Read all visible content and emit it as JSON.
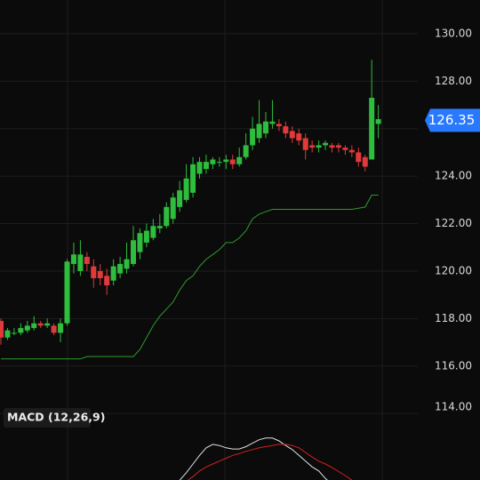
{
  "chart_data": {
    "type": "candlestick",
    "ylim": [
      113.82,
      131.42
    ],
    "yticks": [
      {
        "value": 114,
        "label": "114.00"
      },
      {
        "value": 116,
        "label": "116.00"
      },
      {
        "value": 118,
        "label": "118.00"
      },
      {
        "value": 120,
        "label": "120.00"
      },
      {
        "value": 122,
        "label": "122.00"
      },
      {
        "value": 124,
        "label": "124.00"
      },
      {
        "value": 126,
        "label": "126.00"
      },
      {
        "value": 128,
        "label": "128.00"
      },
      {
        "value": 130,
        "label": "130.00"
      }
    ],
    "grid": true,
    "up_color": "#2ebd3c",
    "down_color": "#e03a3a",
    "open": [
      117.9,
      117.2,
      117.4,
      117.4,
      117.5,
      117.6,
      117.8,
      117.7,
      117.7,
      117.4,
      117.8,
      120.3,
      120.0,
      120.6,
      120.2,
      120.0,
      119.8,
      119.6,
      119.9,
      120.1,
      120.3,
      120.8,
      121.2,
      121.4,
      121.8,
      121.9,
      122.2,
      122.7,
      123.0,
      123.3,
      124.1,
      124.3,
      124.5,
      124.6,
      124.6,
      124.7,
      124.5,
      124.8,
      125.3,
      125.6,
      125.8,
      126.2,
      126.2,
      126.1,
      125.9,
      125.8,
      125.6,
      125.3,
      125.2,
      125.3,
      125.3,
      125.3,
      125.2,
      125.1,
      125.0,
      124.8,
      124.7,
      126.2
    ],
    "high": [
      118.0,
      117.6,
      117.6,
      117.8,
      117.9,
      118.1,
      117.9,
      118.0,
      117.8,
      118.0,
      120.5,
      121.2,
      121.3,
      120.8,
      120.5,
      120.3,
      120.1,
      120.5,
      120.6,
      121.2,
      121.9,
      121.8,
      122.0,
      122.2,
      122.4,
      122.9,
      123.3,
      123.8,
      124.5,
      124.8,
      124.8,
      124.9,
      124.8,
      124.8,
      124.9,
      124.9,
      125.2,
      125.8,
      126.5,
      127.2,
      126.7,
      127.2,
      126.4,
      126.3,
      126.1,
      126.0,
      125.8,
      125.5,
      125.5,
      125.5,
      125.4,
      125.4,
      125.3,
      125.3,
      125.2,
      124.9,
      128.9,
      127.0
    ],
    "low": [
      116.9,
      117.1,
      117.3,
      117.3,
      117.4,
      117.5,
      117.6,
      117.6,
      117.3,
      117.0,
      117.7,
      119.9,
      119.8,
      120.0,
      119.3,
      119.4,
      119.0,
      119.4,
      119.7,
      119.9,
      120.2,
      120.5,
      121.0,
      121.3,
      121.6,
      121.8,
      122.0,
      122.5,
      122.9,
      123.1,
      123.9,
      124.1,
      124.3,
      124.4,
      124.3,
      124.3,
      124.4,
      124.7,
      125.1,
      125.4,
      125.6,
      126.0,
      125.9,
      125.6,
      125.4,
      125.3,
      124.7,
      125.0,
      125.0,
      125.1,
      125.0,
      125.0,
      124.9,
      124.8,
      124.4,
      124.2,
      124.7,
      125.6
    ],
    "close": [
      117.2,
      117.5,
      117.4,
      117.6,
      117.7,
      117.8,
      117.7,
      117.8,
      117.4,
      117.8,
      120.4,
      120.7,
      120.7,
      120.3,
      119.7,
      119.7,
      119.4,
      120.2,
      120.3,
      120.5,
      121.3,
      121.6,
      121.7,
      121.9,
      121.9,
      122.7,
      123.1,
      123.4,
      123.9,
      124.5,
      124.6,
      124.6,
      124.7,
      124.6,
      124.7,
      124.5,
      124.8,
      125.3,
      126.0,
      126.2,
      126.3,
      126.3,
      126.1,
      125.8,
      125.6,
      125.5,
      125.1,
      125.2,
      125.3,
      125.4,
      125.2,
      125.2,
      125.1,
      125.0,
      124.6,
      124.4,
      127.3,
      126.4
    ],
    "overlay": {
      "color": "#2e9b2e",
      "values": [
        116.3,
        116.3,
        116.3,
        116.3,
        116.3,
        116.3,
        116.3,
        116.3,
        116.3,
        116.3,
        116.3,
        116.3,
        116.3,
        116.4,
        116.4,
        116.4,
        116.4,
        116.4,
        116.4,
        116.4,
        116.4,
        116.7,
        117.2,
        117.7,
        118.1,
        118.4,
        118.7,
        119.2,
        119.6,
        119.8,
        120.2,
        120.5,
        120.7,
        120.9,
        121.2,
        121.2,
        121.4,
        121.7,
        122.2,
        122.4,
        122.5,
        122.6,
        122.6,
        122.6,
        122.6,
        122.6,
        122.6,
        122.6,
        122.6,
        122.6,
        122.6,
        122.6,
        122.6,
        122.6,
        122.65,
        122.7,
        123.2,
        123.2
      ]
    },
    "last_price": 126.35,
    "last_price_color": "#2979ff",
    "macd_pane": {
      "title": "MACD (12,26,9)",
      "ylim": [
        -1,
        1
      ],
      "macd": {
        "color": "#e0e0e0",
        "values": [
          null,
          null,
          null,
          null,
          null,
          null,
          null,
          null,
          null,
          null,
          null,
          null,
          null,
          null,
          null,
          null,
          null,
          null,
          null,
          null,
          null,
          null,
          null,
          null,
          null,
          null,
          null,
          -0.08,
          0.05,
          0.2,
          0.35,
          0.48,
          0.54,
          0.52,
          0.48,
          0.46,
          0.46,
          0.5,
          0.56,
          0.62,
          0.65,
          0.65,
          0.6,
          0.52,
          0.45,
          0.35,
          0.25,
          0.15,
          0.08,
          -0.05,
          -0.15,
          null,
          null,
          null,
          null,
          null,
          null,
          null
        ]
      },
      "signal": {
        "color": "#d42020",
        "values": [
          null,
          null,
          null,
          null,
          null,
          null,
          null,
          null,
          null,
          null,
          null,
          null,
          null,
          null,
          null,
          null,
          null,
          null,
          null,
          null,
          null,
          null,
          null,
          null,
          null,
          null,
          null,
          null,
          -0.1,
          -0.02,
          0.08,
          0.15,
          0.2,
          0.25,
          0.3,
          0.35,
          0.38,
          0.42,
          0.45,
          0.48,
          0.5,
          0.52,
          0.54,
          0.54,
          0.52,
          0.48,
          0.4,
          0.32,
          0.25,
          0.2,
          0.14,
          0.07,
          0.0,
          -0.08,
          null,
          null,
          null,
          null
        ]
      }
    }
  }
}
